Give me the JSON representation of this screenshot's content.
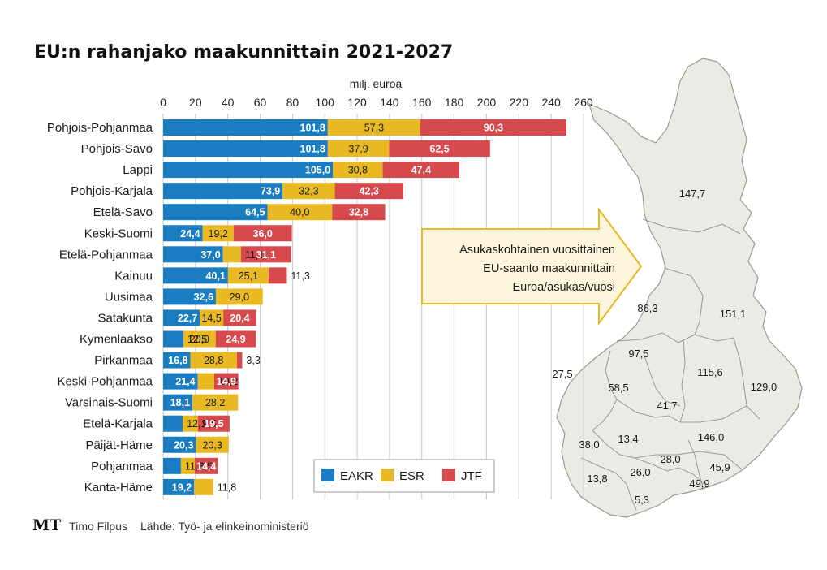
{
  "chart_data": {
    "type": "bar",
    "orientation": "horizontal",
    "stacked": true,
    "title": "EU:n rahanjako maakunnittain 2021-2027",
    "xlabel": "milj. euroa",
    "xlim": [
      0,
      260
    ],
    "xticks": [
      "0",
      "20",
      "40",
      "60",
      "80",
      "100",
      "120",
      "140",
      "160",
      "180",
      "200",
      "220",
      "240",
      "260"
    ],
    "grid": true,
    "legend_position": "bottom-right",
    "categories": [
      "Pohjois-Pohjanmaa",
      "Pohjois-Savo",
      "Lappi",
      "Pohjois-Karjala",
      "Etelä-Savo",
      "Keski-Suomi",
      "Etelä-Pohjanmaa",
      "Kainuu",
      "Uusimaa",
      "Satakunta",
      "Kymenlaakso",
      "Pirkanmaa",
      "Keski-Pohjanmaa",
      "Varsinais-Suomi",
      "Etelä-Karjala",
      "Päijät-Häme",
      "Pohjanmaa",
      "Kanta-Häme"
    ],
    "series": [
      {
        "name": "EAKR",
        "color": "#1a7cc1",
        "values": [
          101.8,
          101.8,
          105.0,
          73.9,
          64.5,
          24.4,
          37.0,
          40.1,
          32.6,
          22.7,
          12.5,
          16.8,
          21.4,
          18.1,
          12.1,
          20.3,
          11.0,
          19.2
        ],
        "labels": [
          "101,8",
          "101,8",
          "105,0",
          "73,9",
          "64,5",
          "24,4",
          "37,0",
          "40,1",
          "32,6",
          "22,7",
          "12,5",
          "16,8",
          "21,4",
          "18,1",
          "12,1",
          "20,3",
          "11,0",
          "19,2"
        ]
      },
      {
        "name": "ESR",
        "color": "#e8b923",
        "values": [
          57.3,
          37.9,
          30.8,
          32.3,
          40.0,
          19.2,
          11.1,
          25.1,
          29.0,
          14.5,
          20.0,
          28.8,
          10.2,
          28.2,
          9.5,
          20.3,
          8.5,
          11.8
        ],
        "labels": [
          "57,3",
          "37,9",
          "30,8",
          "32,3",
          "40,0",
          "19,2",
          "11,1",
          "25,1",
          "29,0",
          "14,5",
          "20,0",
          "28,8",
          "10,2",
          "28,2",
          "9,5",
          "20,3",
          "8,5",
          "11,8"
        ]
      },
      {
        "name": "JTF",
        "color": "#d64a4e",
        "values": [
          90.3,
          62.5,
          47.4,
          42.3,
          32.8,
          36.0,
          31.1,
          11.3,
          0,
          20.4,
          24.9,
          3.3,
          14.9,
          0,
          19.5,
          0,
          14.4,
          0
        ],
        "labels": [
          "90,3",
          "62,5",
          "47,4",
          "42,3",
          "32,8",
          "36,0",
          "31,1",
          "11,3",
          "",
          "20,4",
          "24,9",
          "3,3",
          "14,9",
          "",
          "19,5",
          "",
          "14,4",
          ""
        ]
      }
    ],
    "annotation": [
      "Asukaskohtainen vuosittainen",
      "EU-saanto maakunnittain",
      "Euroa/asukas/vuosi"
    ],
    "map_values": [
      "147,7",
      "86,3",
      "151,1",
      "97,5",
      "27,5",
      "58,5",
      "41,7",
      "115,6",
      "129,0",
      "38,0",
      "13,4",
      "146,0",
      "28,0",
      "45,9",
      "13,8",
      "26,0",
      "49,9",
      "5,3"
    ]
  },
  "footer": {
    "logo": "MT",
    "author": "Timo Filpus",
    "source": "Lähde: Työ- ja elinkeinoministeriö"
  }
}
